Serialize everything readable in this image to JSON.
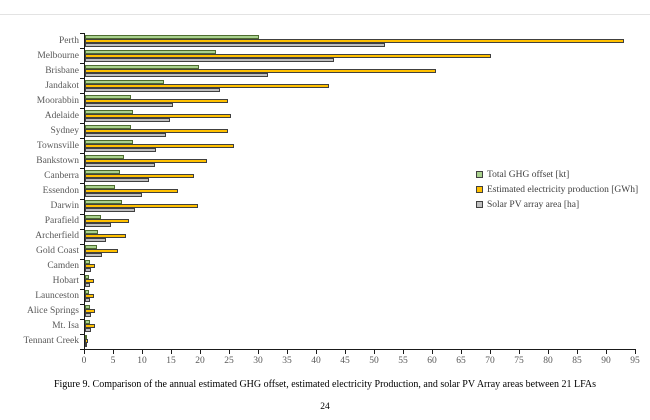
{
  "page": {
    "caption": "Figure 9. Comparison of the annual estimated GHG offset, estimated electricity Production, and solar PV Array areas between 21 LFAs",
    "page_number": "24"
  },
  "chart_data": {
    "type": "bar",
    "orientation": "horizontal",
    "title": "",
    "xlabel": "",
    "ylabel": "",
    "xlim": [
      0,
      95
    ],
    "x_ticks": [
      0,
      5,
      10,
      15,
      20,
      25,
      30,
      35,
      40,
      45,
      50,
      55,
      60,
      65,
      70,
      75,
      80,
      85,
      90,
      95
    ],
    "grid": false,
    "legend_position": "middle-right",
    "categories": [
      "Perth",
      "Melbourne",
      "Brisbane",
      "Jandakot",
      "Moorabbin",
      "Adelaide",
      "Sydney",
      "Townsville",
      "Bankstown",
      "Canberra",
      "Essendon",
      "Darwin",
      "Parafield",
      "Archerfield",
      "Gold Coast",
      "Camden",
      "Hobart",
      "Launceston",
      "Alice Springs",
      "Mt. Isa",
      "Tennant Creek"
    ],
    "series": [
      {
        "name": "Total GHG offset [kt]",
        "color": "#a9d18e",
        "border_color": "#4e6b30",
        "values": [
          30,
          22.5,
          19.7,
          13.6,
          8,
          8.2,
          8,
          8.2,
          6.7,
          6.1,
          5.2,
          6.4,
          2.7,
          2.3,
          2,
          0.9,
          0.7,
          0.7,
          0.8,
          0.8,
          0.2
        ]
      },
      {
        "name": "Estimated electricity production [GWh]",
        "color": "#ffc000",
        "border_color": "#404040",
        "values": [
          93,
          70,
          60.5,
          42,
          24.6,
          25.1,
          24.7,
          25.7,
          21.1,
          18.8,
          16,
          19.5,
          7.5,
          7,
          5.7,
          1.8,
          1.5,
          1.5,
          1.7,
          1.7,
          0.5
        ]
      },
      {
        "name": "Solar PV array area [ha]",
        "color": "#bfbfbf",
        "border_color": "#404040",
        "values": [
          51.7,
          43,
          31.5,
          23.2,
          15.2,
          14.6,
          14,
          12.2,
          12,
          11.1,
          9.8,
          8.7,
          4.5,
          3.6,
          3,
          1.1,
          0.9,
          0.9,
          1,
          1,
          0.3
        ]
      }
    ]
  }
}
